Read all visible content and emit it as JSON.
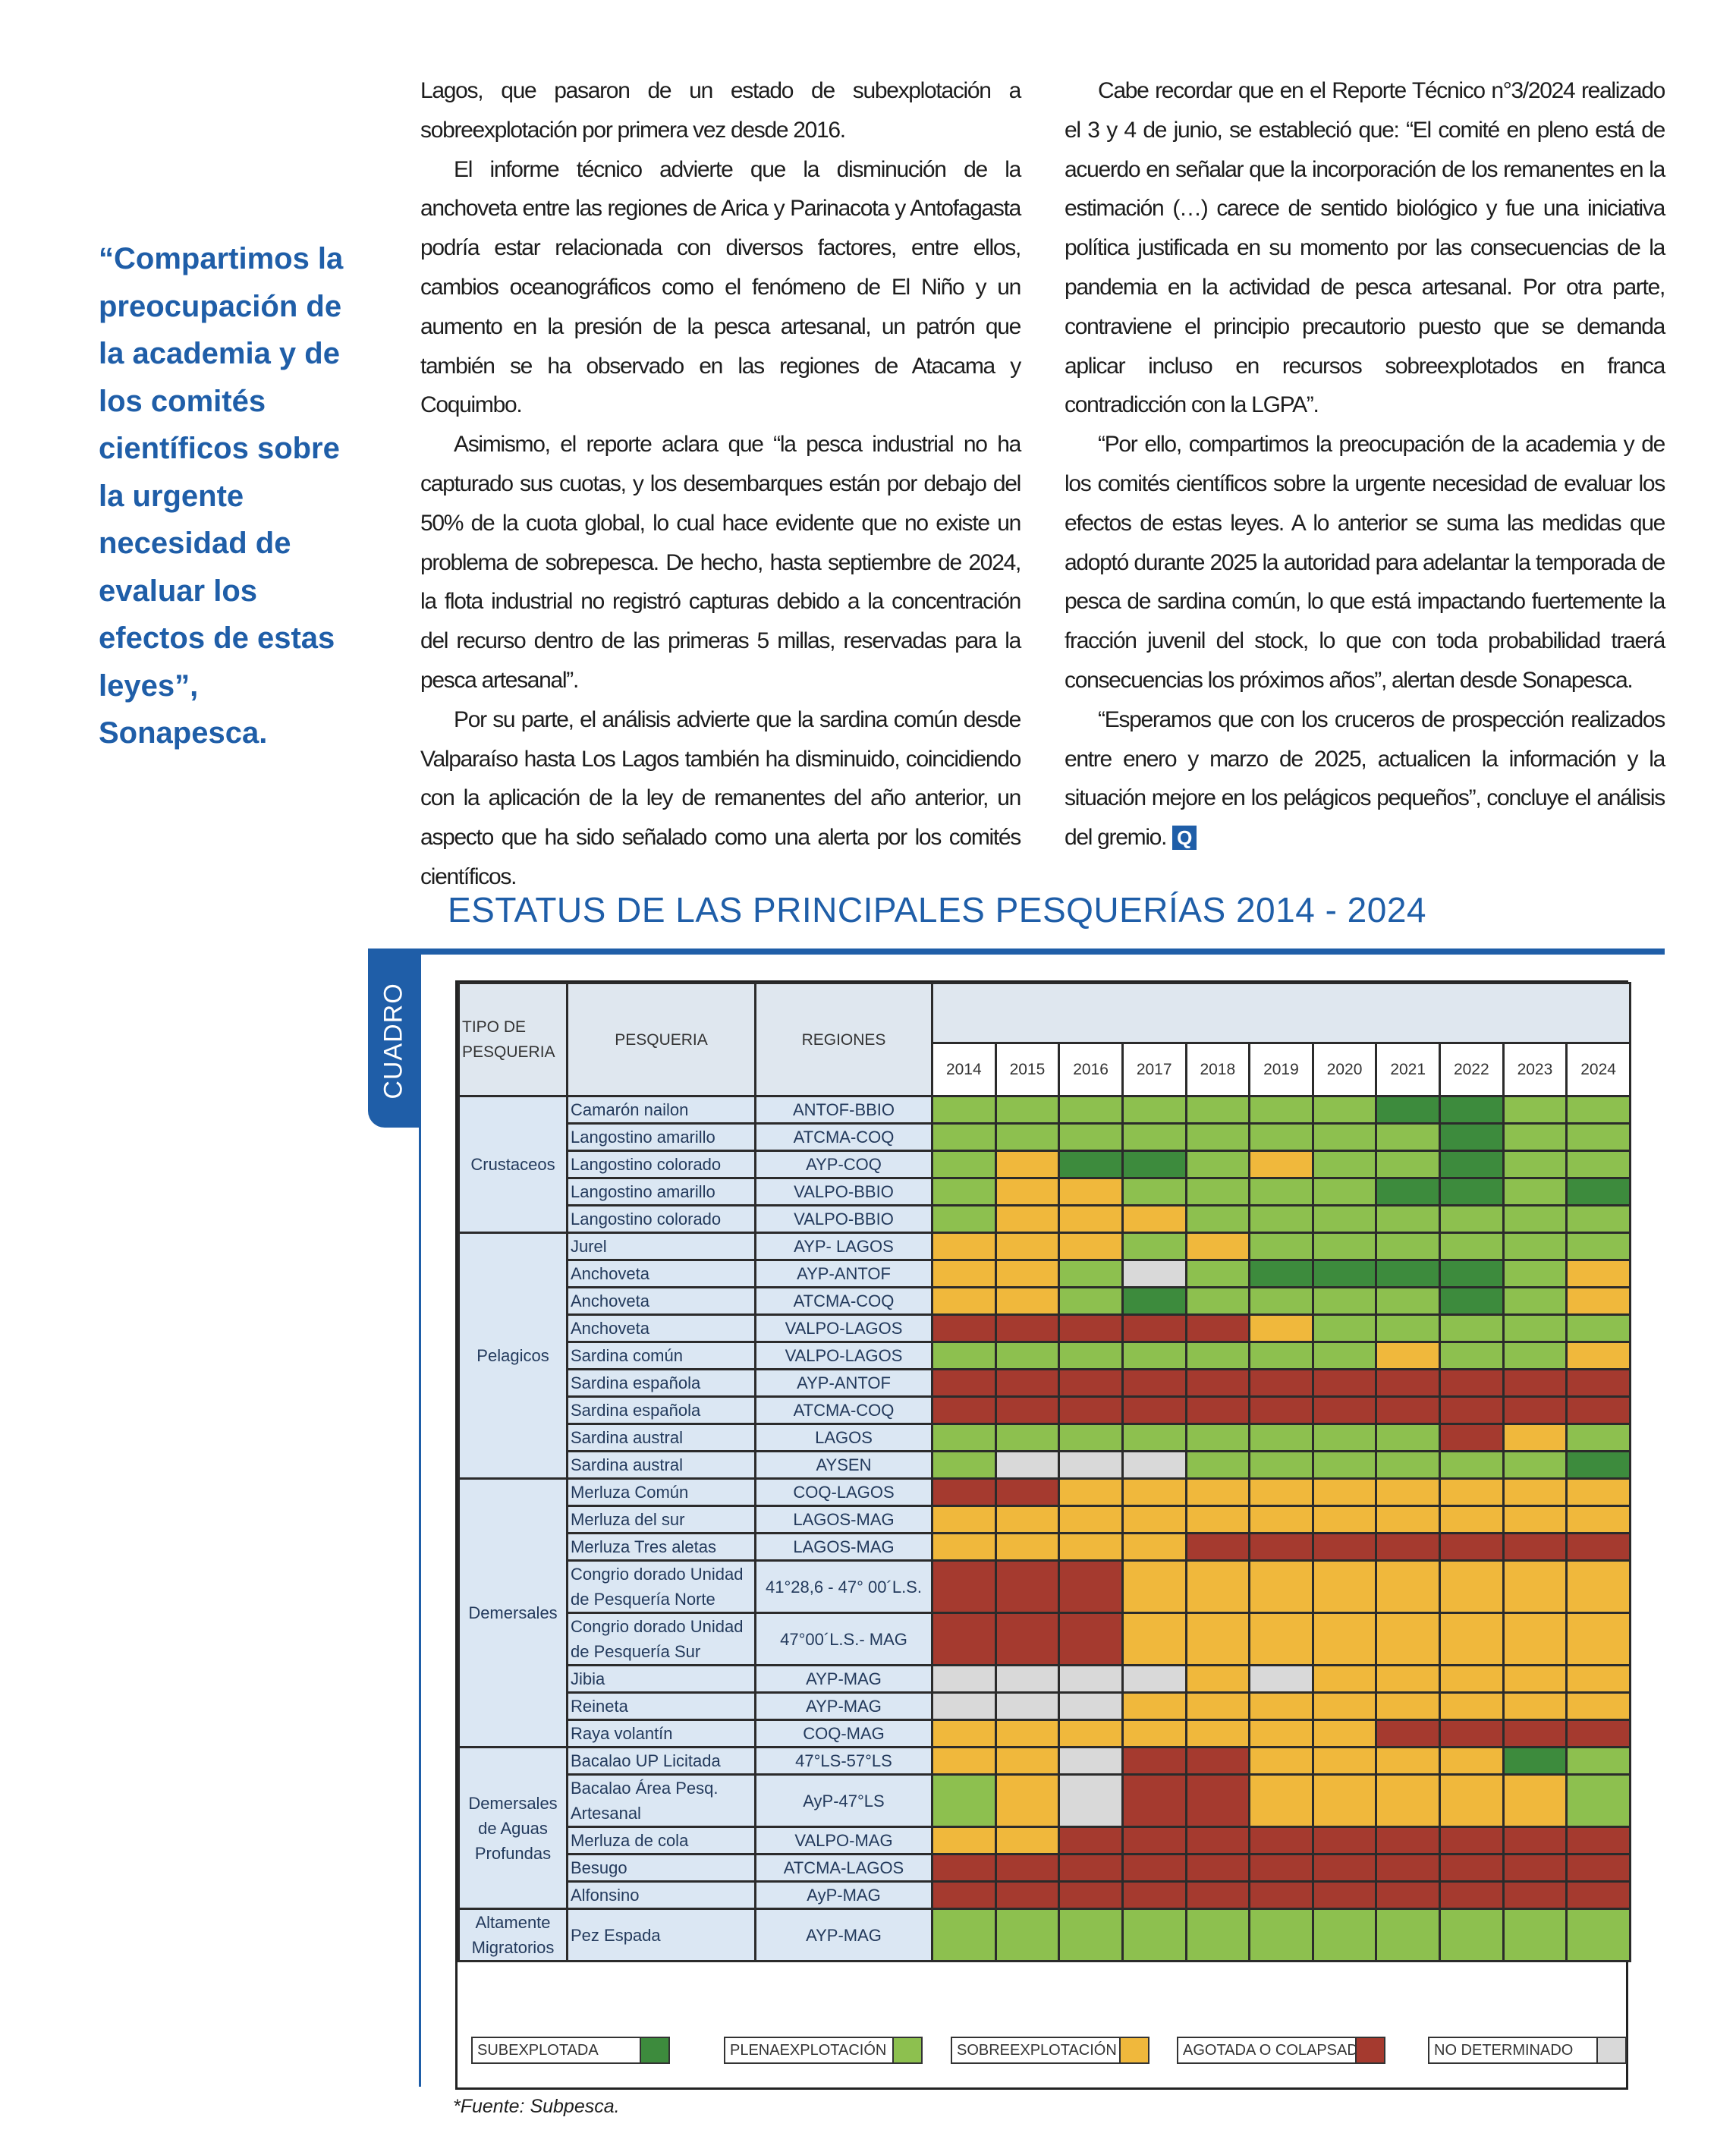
{
  "pull_quote": "“Compartimos la preocupación de la academia y de los comités científicos sobre la urgente necesidad de evaluar los efectos de estas leyes”, Sonapesca.",
  "columns": [
    {
      "paragraphs": [
        "Lagos, que pasaron de un estado de subexplotación a sobreexplotación por primera vez desde 2016.",
        "El informe técnico advierte que la disminución de la anchoveta entre las regiones de Arica y Parinacota y Antofagasta podría estar relacionada con diversos factores, entre ellos, cambios oceanográficos como el fenómeno de El Niño y un aumento en la presión de la pesca artesanal, un patrón que también se ha observado en las regiones de Atacama y Coquimbo.",
        "Asimismo, el reporte aclara que “la pesca industrial no ha capturado sus cuotas, y los desembarques están por debajo del 50% de la cuota global, lo cual hace evidente que no existe un problema de sobrepesca. De hecho, hasta septiembre de 2024, la flota industrial no registró capturas debido a la concentración del recurso dentro de las primeras 5 millas, reservadas para la pesca artesanal”.",
        "Por su parte, el análisis advierte que la sardina común desde Valparaíso hasta Los Lagos también ha disminuido, coincidiendo con la aplicación de la ley de remanentes del año anterior, un aspecto que ha sido señalado como una alerta por los comités científicos."
      ]
    },
    {
      "paragraphs": [
        "Cabe recordar que en el Reporte Técnico n°3/2024 realizado el 3 y 4 de junio, se estableció que: “El comité en pleno está de acuerdo en señalar que la incorporación de los remanentes en la estimación (…) carece de sentido biológico y fue una iniciativa política justificada en su momento por las consecuencias de la pandemia en la actividad de pesca artesanal. Por otra parte, contraviene el principio precautorio puesto que se demanda aplicar incluso en recursos sobreexplotados en franca contradicción con la LGPA”.",
        "“Por ello, compartimos la preocupación de la academia y de los comités científicos sobre la urgente necesidad de evaluar los efectos de estas leyes. A lo anterior se suma las medidas que adoptó durante 2025 la autoridad para adelantar la temporada de pesca de sardina común, lo que está impactando fuertemente la fracción juvenil del stock, lo que con toda probabilidad traerá consecuencias los próximos años”, alertan desde Sonapesca.",
        "“Esperamos que con los cruceros de prospección realizados entre enero y marzo de 2025, actualicen la información y la situación mejore en los pelágicos pequeños”, concluye el análisis del gremio."
      ],
      "end_mark": "Q"
    }
  ],
  "figure": {
    "title": "ESTATUS DE LAS PRINCIPALES PESQUERÍAS 2014 - 2024",
    "tab": "CUADRO",
    "source": "*Fuente: Subpesca."
  },
  "table": {
    "headers": {
      "type": "TIPO DE PESQUERIA",
      "fishery": "PESQUERIA",
      "regions": "REGIONES",
      "years": [
        2014,
        2015,
        2016,
        2017,
        2018,
        2019,
        2020,
        2021,
        2022,
        2023,
        2024
      ]
    },
    "legend": [
      {
        "label": "SUBEXPLOTADA",
        "color": "#3d8b3d"
      },
      {
        "label": "PLENAEXPLOTACIÓN",
        "color": "#8dc04f"
      },
      {
        "label": "SOBREEXPLOTACIÓN",
        "color": "#f0b83c"
      },
      {
        "label": "AGOTADA O COLAPSADA",
        "color": "#a53a2f"
      },
      {
        "label": "NO DETERMINADO",
        "color": "#d9d9d9"
      }
    ],
    "groups": [
      {
        "name": "Crustaceos",
        "rows": [
          {
            "fishery": "Camarón nailon",
            "region": "ANTOF-BBIO",
            "status": [
              1,
              1,
              1,
              1,
              1,
              1,
              1,
              0,
              0,
              1,
              1
            ]
          },
          {
            "fishery": "Langostino amarillo",
            "region": "ATCMA-COQ",
            "status": [
              1,
              1,
              1,
              1,
              1,
              1,
              1,
              1,
              0,
              1,
              1
            ]
          },
          {
            "fishery": "Langostino colorado",
            "region": "AYP-COQ",
            "status": [
              1,
              2,
              0,
              0,
              1,
              2,
              1,
              1,
              0,
              1,
              1
            ]
          },
          {
            "fishery": "Langostino amarillo",
            "region": "VALPO-BBIO",
            "status": [
              1,
              2,
              2,
              1,
              1,
              1,
              1,
              0,
              0,
              1,
              0
            ]
          },
          {
            "fishery": "Langostino colorado",
            "region": "VALPO-BBIO",
            "status": [
              1,
              2,
              2,
              2,
              1,
              1,
              1,
              1,
              1,
              1,
              1
            ]
          }
        ]
      },
      {
        "name": "Pelagicos",
        "rows": [
          {
            "fishery": "Jurel",
            "region": "AYP- LAGOS",
            "status": [
              2,
              2,
              2,
              1,
              2,
              1,
              1,
              1,
              1,
              1,
              1
            ]
          },
          {
            "fishery": "Anchoveta",
            "region": "AYP-ANTOF",
            "status": [
              2,
              2,
              1,
              4,
              1,
              0,
              0,
              0,
              0,
              1,
              2
            ]
          },
          {
            "fishery": "Anchoveta",
            "region": "ATCMA-COQ",
            "status": [
              2,
              2,
              1,
              0,
              1,
              1,
              1,
              1,
              0,
              1,
              2
            ]
          },
          {
            "fishery": "Anchoveta",
            "region": "VALPO-LAGOS",
            "status": [
              3,
              3,
              3,
              3,
              3,
              2,
              1,
              1,
              1,
              1,
              1
            ]
          },
          {
            "fishery": "Sardina común",
            "region": "VALPO-LAGOS",
            "status": [
              1,
              1,
              1,
              1,
              1,
              1,
              1,
              2,
              1,
              1,
              2
            ]
          },
          {
            "fishery": "Sardina española",
            "region": "AYP-ANTOF",
            "status": [
              3,
              3,
              3,
              3,
              3,
              3,
              3,
              3,
              3,
              3,
              3
            ]
          },
          {
            "fishery": "Sardina española",
            "region": "ATCMA-COQ",
            "status": [
              3,
              3,
              3,
              3,
              3,
              3,
              3,
              3,
              3,
              3,
              3
            ]
          },
          {
            "fishery": "Sardina austral",
            "region": "LAGOS",
            "status": [
              1,
              1,
              1,
              1,
              1,
              1,
              1,
              1,
              3,
              2,
              1
            ]
          },
          {
            "fishery": "Sardina austral",
            "region": "AYSEN",
            "status": [
              1,
              4,
              4,
              4,
              1,
              1,
              1,
              1,
              1,
              1,
              0
            ]
          }
        ]
      },
      {
        "name": "Demersales",
        "rows": [
          {
            "fishery": "Merluza Común",
            "region": "COQ-LAGOS",
            "status": [
              3,
              3,
              2,
              2,
              2,
              2,
              2,
              2,
              2,
              2,
              2
            ]
          },
          {
            "fishery": "Merluza del sur",
            "region": "LAGOS-MAG",
            "status": [
              2,
              2,
              2,
              2,
              2,
              2,
              2,
              2,
              2,
              2,
              2
            ]
          },
          {
            "fishery": "Merluza Tres aletas",
            "region": "LAGOS-MAG",
            "status": [
              2,
              2,
              2,
              2,
              3,
              3,
              3,
              3,
              3,
              3,
              3
            ]
          },
          {
            "fishery": "Congrio dorado Unidad de Pesquería Norte",
            "region": "41°28,6 - 47° 00´L.S.",
            "status": [
              3,
              3,
              3,
              2,
              2,
              2,
              2,
              2,
              2,
              2,
              2
            ]
          },
          {
            "fishery": "Congrio dorado Unidad de Pesquería Sur",
            "region": "47°00´L.S.- MAG",
            "status": [
              3,
              3,
              3,
              2,
              2,
              2,
              2,
              2,
              2,
              2,
              2
            ]
          },
          {
            "fishery": "Jibia",
            "region": "AYP-MAG",
            "status": [
              4,
              4,
              4,
              4,
              2,
              4,
              2,
              2,
              2,
              2,
              2
            ]
          },
          {
            "fishery": "Reineta",
            "region": "AYP-MAG",
            "status": [
              4,
              4,
              4,
              2,
              2,
              2,
              2,
              2,
              2,
              2,
              2
            ]
          },
          {
            "fishery": "Raya volantín",
            "region": "COQ-MAG",
            "status": [
              2,
              2,
              2,
              2,
              2,
              2,
              2,
              3,
              3,
              3,
              3
            ]
          }
        ]
      },
      {
        "name": "Demersales de Aguas Profundas",
        "rows": [
          {
            "fishery": "Bacalao UP Licitada",
            "region": "47°LS-57°LS",
            "status": [
              2,
              2,
              4,
              3,
              3,
              2,
              2,
              2,
              2,
              0,
              1
            ]
          },
          {
            "fishery": "Bacalao Área Pesq. Artesanal",
            "region": "AyP-47°LS",
            "status": [
              1,
              2,
              4,
              3,
              3,
              2,
              2,
              2,
              2,
              2,
              1
            ]
          },
          {
            "fishery": "Merluza de cola",
            "region": "VALPO-MAG",
            "status": [
              2,
              2,
              3,
              3,
              3,
              3,
              3,
              3,
              3,
              3,
              3
            ]
          },
          {
            "fishery": "Besugo",
            "region": "ATCMA-LAGOS",
            "status": [
              3,
              3,
              3,
              3,
              3,
              3,
              3,
              3,
              3,
              3,
              3
            ]
          },
          {
            "fishery": "Alfonsino",
            "region": "AyP-MAG",
            "status": [
              3,
              3,
              3,
              3,
              3,
              3,
              3,
              3,
              3,
              3,
              3
            ]
          }
        ]
      },
      {
        "name": "Altamente Migratorios",
        "rows": [
          {
            "fishery": "Pez Espada",
            "region": "AYP-MAG",
            "status": [
              1,
              1,
              1,
              1,
              1,
              1,
              1,
              1,
              1,
              1,
              1
            ]
          }
        ]
      }
    ]
  }
}
